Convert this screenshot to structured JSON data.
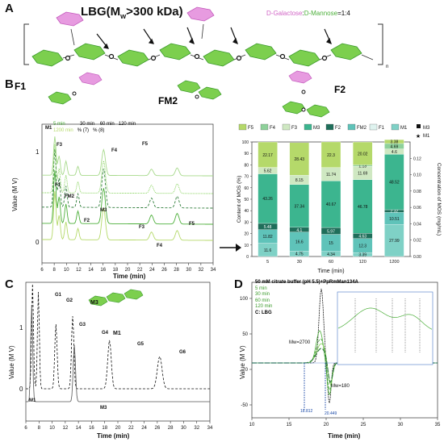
{
  "panels": {
    "A": "A",
    "B": "B",
    "C": "C",
    "D": "D"
  },
  "panelA": {
    "title": "LBG(M",
    "title_sub": "w",
    "title_rest": ">300 kDa)",
    "ratio_galactose": "D-Galactose",
    "ratio_sep": ":",
    "ratio_mannose": "D-Mannose",
    "ratio_val": "=1:4",
    "subscript_n": "n"
  },
  "structures": {
    "F1": "F1",
    "FM2": "FM2",
    "F2": "F2"
  },
  "panelB": {
    "legend": [
      "5 min",
      "30 min",
      "60 min",
      "120 min",
      "1200 min",
      "% (7)",
      "% (8)"
    ],
    "ylabel": "Value (M V)",
    "xlabel": "Time (min)",
    "peak_labels": [
      "M1",
      "F3",
      "F1",
      "FM2",
      "F4",
      "F5",
      "F2",
      "M3",
      "F3",
      "F5",
      "F4"
    ],
    "y_ticks": [
      "1",
      "0"
    ],
    "x_ticks": [
      "6",
      "8",
      "10",
      "12",
      "14",
      "16",
      "18",
      "20",
      "22",
      "24",
      "26",
      "28",
      "30",
      "32",
      "34"
    ]
  },
  "chart_data": [
    {
      "type": "bar",
      "title": "",
      "xlabel": "Time (min)",
      "ylabel": "Content of MOS (%)",
      "ylabel_right": "Concentration of MOS (mg/mL)",
      "categories": [
        "5",
        "30",
        "60",
        "120",
        "1200"
      ],
      "ylim": [
        0,
        100
      ],
      "y2lim": [
        0,
        0.14
      ],
      "yticks": [
        "0",
        "10",
        "20",
        "30",
        "40",
        "50",
        "60",
        "70",
        "80",
        "90",
        "100"
      ],
      "y2ticks": [
        "0.00",
        "0.02",
        "0.04",
        "0.06",
        "0.08",
        "0.10",
        "0.12"
      ],
      "legend": [
        "F5",
        "F4",
        "F3",
        "M3",
        "F2",
        "FM2",
        "F1",
        "M1",
        "M3",
        "M1"
      ],
      "series_order_bottom_to_top": [
        "M1",
        "F1",
        "FM2",
        "F2",
        "M3",
        "F3",
        "F4",
        "F5"
      ],
      "series": [
        {
          "name": "M1",
          "values": [
            11.6,
            4.75,
            4.34,
            3.39,
            27.99
          ]
        },
        {
          "name": "FM2",
          "values": [
            11.82,
            16.6,
            15.0,
            12.3,
            10.51
          ]
        },
        {
          "name": "F2",
          "values": [
            5.48,
            4.1,
            5.97,
            4.63,
            2.32
          ]
        },
        {
          "name": "M3",
          "values": [
            43.26,
            37.34,
            40.67,
            46.78,
            48.52
          ]
        },
        {
          "name": "F3",
          "values": [
            5.62,
            8.15,
            11.74,
            11.69,
            4.6
          ]
        },
        {
          "name": "F4",
          "values": [
            0,
            0,
            0,
            1.13,
            4.69
          ]
        },
        {
          "name": "F5",
          "values": [
            22.17,
            28.43,
            22.3,
            20.02,
            3.38
          ]
        }
      ],
      "labels": [
        [
          "11.6",
          "11.82",
          "5.48",
          "43.26",
          "5.62",
          "22.17"
        ],
        [
          "4.75",
          "16.6",
          "4.10",
          "37.34",
          "8.15",
          "28.43"
        ],
        [
          "4.34",
          "15.0",
          "5.97",
          "40.67",
          "11.74",
          "22.30"
        ],
        [
          "3.39",
          "12.3",
          "4.63",
          "46.78",
          "11.69",
          "1.13",
          "20.02"
        ],
        [
          "27.99",
          "10.51",
          "2.32",
          "48.52",
          "4.60",
          "4.69",
          "3.38"
        ]
      ],
      "legend_colors": {
        "F5": "#b5d96a",
        "F4": "#8ed19a",
        "F3": "#cfe8c2",
        "M3": "#3cb58f",
        "F2": "#1f6e5a",
        "FM2": "#5fc3b9",
        "F1": "#dff3ef",
        "M1": "#7fd1c6"
      }
    },
    {
      "type": "line",
      "xlabel": "Time (min)",
      "ylabel": "Value (M V)",
      "peaks": [
        "G1",
        "G2",
        "G3",
        "G4",
        "G5",
        "G6",
        "M1",
        "M3"
      ],
      "x_ticks": [
        "6",
        "8",
        "10",
        "12",
        "14",
        "16",
        "18",
        "20",
        "22",
        "24",
        "26",
        "28",
        "30",
        "32",
        "34"
      ],
      "y_ticks": [
        "1",
        "0"
      ]
    },
    {
      "type": "line",
      "xlabel": "Time (min)",
      "ylabel": "Value (M V)",
      "legend": [
        "50 mM citrate buffer (pH 5.5)+PpRmMan134A",
        "5 min",
        "30 min",
        "60 min",
        "120 min",
        "C: LBG"
      ],
      "annotations": [
        "Mw=2700",
        "Mw=180",
        "18.812",
        "20.449"
      ],
      "x_ticks": [
        "10",
        "15",
        "20",
        "25",
        "30",
        "35"
      ],
      "y_ticks": [
        "100",
        "50",
        "0",
        "-50"
      ]
    }
  ]
}
